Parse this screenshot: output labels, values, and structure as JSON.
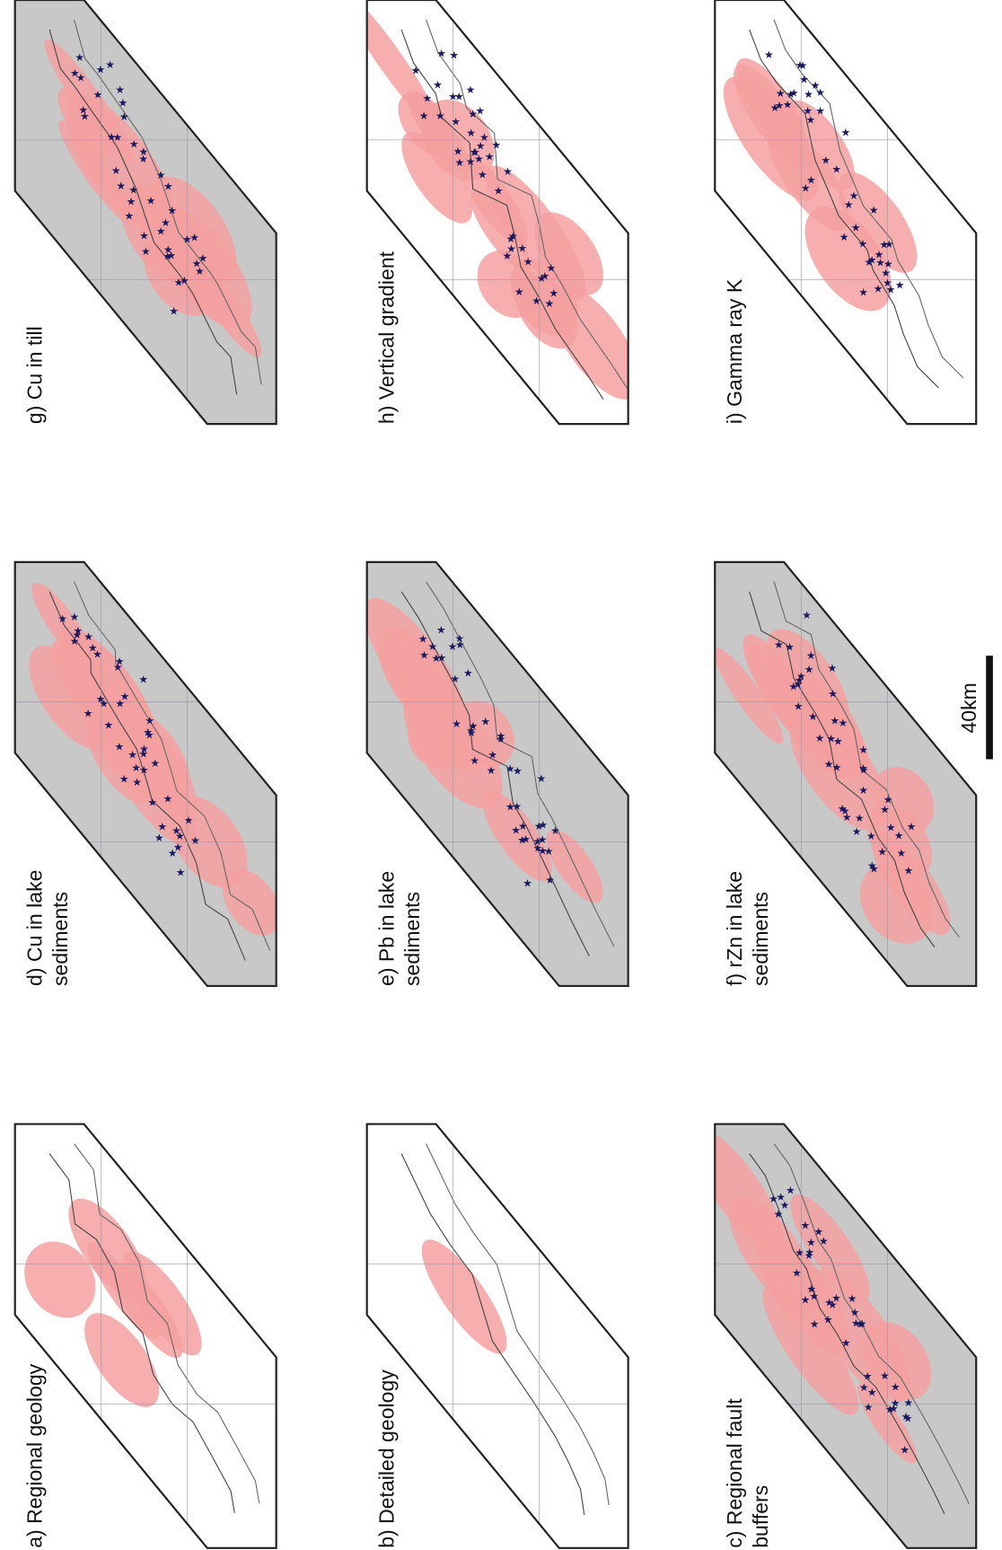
{
  "panels": [
    {
      "label": [
        "a) Regional geology"
      ]
    },
    {
      "label": [
        "b) Detailed geology"
      ]
    },
    {
      "label": [
        "c) Regional fault",
        "buffers"
      ]
    },
    {
      "label": [
        "d) Cu in lake",
        "sediments"
      ]
    },
    {
      "label": [
        "e) Pb in lake",
        "sediments"
      ]
    },
    {
      "label": [
        "f) rZn in lake",
        "sediments"
      ]
    },
    {
      "label": [
        "g) Cu in till"
      ]
    },
    {
      "label": [
        "h) Vertical gradient"
      ]
    },
    {
      "label": [
        "i) Gamma ray K"
      ]
    }
  ],
  "scale_bar": {
    "label": "40km"
  }
}
